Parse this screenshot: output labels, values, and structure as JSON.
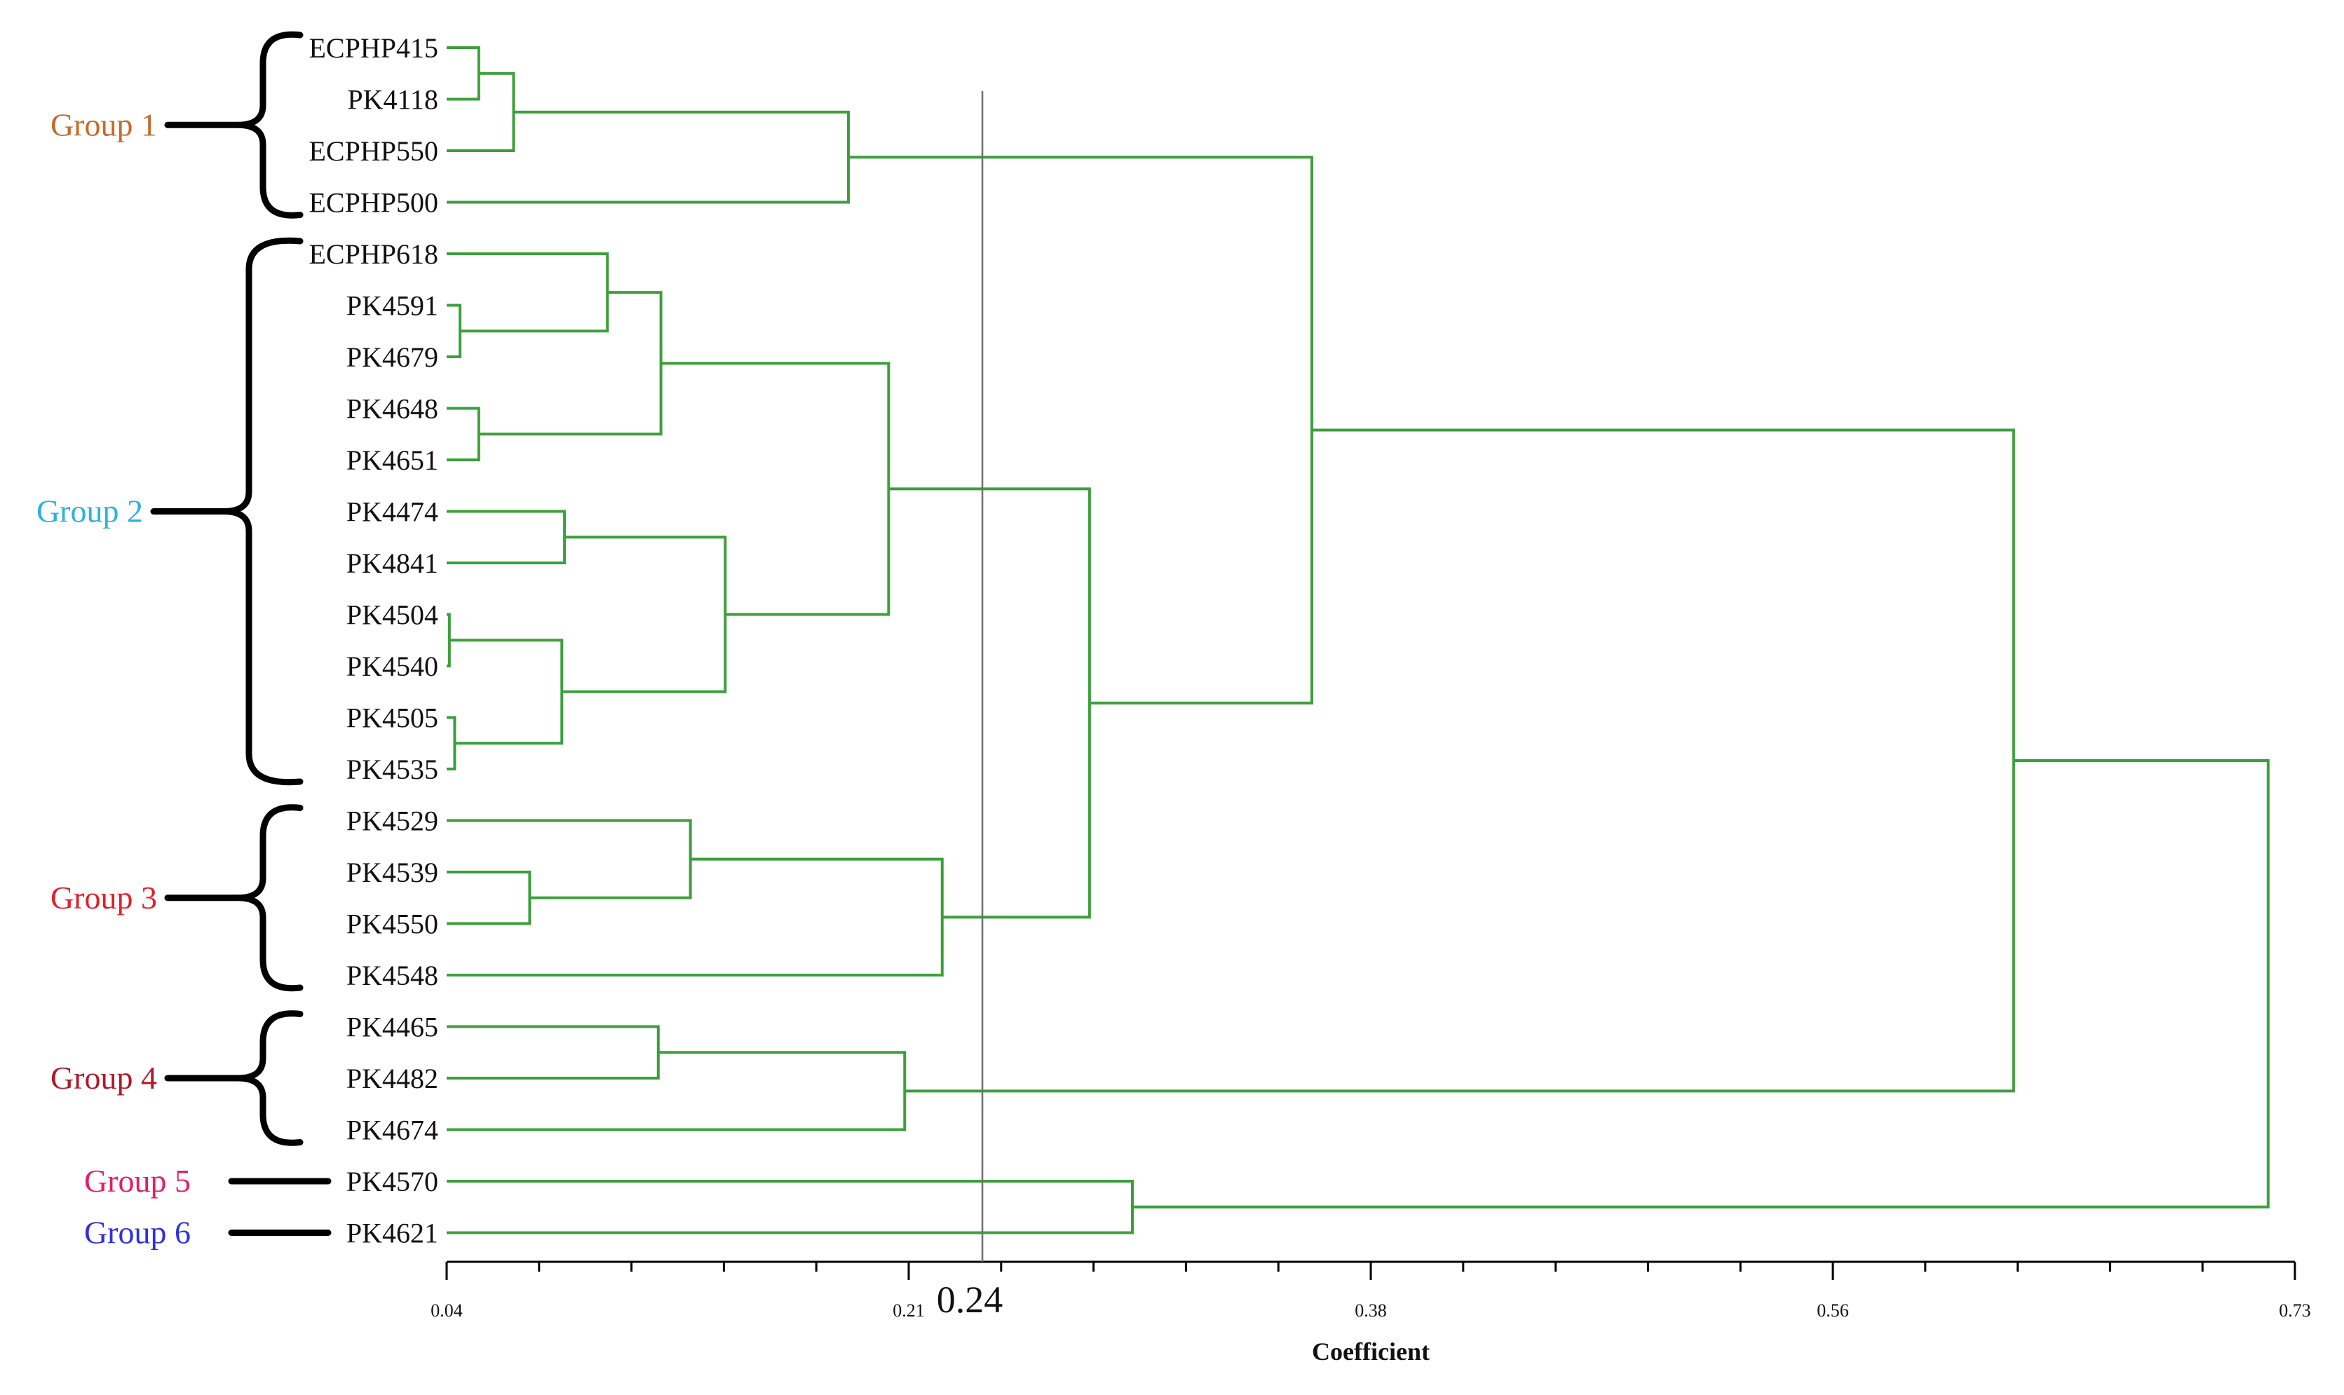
{
  "chart_data": {
    "type": "dendrogram",
    "method": "hierarchical clustering",
    "xlabel": "Coefficient",
    "xlim": [
      0.04,
      0.73
    ],
    "xticks": [
      "0.04",
      "0.21",
      "0.38",
      "0.56",
      "0.73"
    ],
    "cut_line": {
      "value": 0.24,
      "label": "0.24"
    },
    "branch_color": "#3c9f3c",
    "leaves": [
      "ECPHP415",
      "PK4118",
      "ECPHP550",
      "ECPHP500",
      "ECPHP618",
      "PK4591",
      "PK4679",
      "PK4648",
      "PK4651",
      "PK4474",
      "PK4841",
      "PK4504",
      "PK4540",
      "PK4505",
      "PK4535",
      "PK4529",
      "PK4539",
      "PK4550",
      "PK4548",
      "PK4465",
      "PK4482",
      "PK4674",
      "PK4570",
      "PK4621"
    ],
    "merges": [
      {
        "id": "m1",
        "children": [
          "ECPHP415",
          "PK4118"
        ],
        "height": 0.052
      },
      {
        "id": "m2",
        "children": [
          "m1",
          "ECPHP550"
        ],
        "height": 0.065
      },
      {
        "id": "m3",
        "children": [
          "m2",
          "ECPHP500"
        ],
        "height": 0.19
      },
      {
        "id": "m4",
        "children": [
          "PK4591",
          "PK4679"
        ],
        "height": 0.045
      },
      {
        "id": "m5",
        "children": [
          "ECPHP618",
          "m4"
        ],
        "height": 0.1
      },
      {
        "id": "m6",
        "children": [
          "PK4648",
          "PK4651"
        ],
        "height": 0.052
      },
      {
        "id": "m7",
        "children": [
          "m5",
          "m6"
        ],
        "height": 0.12
      },
      {
        "id": "m8",
        "children": [
          "PK4474",
          "PK4841"
        ],
        "height": 0.084
      },
      {
        "id": "m9",
        "children": [
          "PK4504",
          "PK4540"
        ],
        "height": 0.041
      },
      {
        "id": "m10",
        "children": [
          "PK4505",
          "PK4535"
        ],
        "height": 0.043
      },
      {
        "id": "m11",
        "children": [
          "m9",
          "m10"
        ],
        "height": 0.083
      },
      {
        "id": "m12",
        "children": [
          "m8",
          "m11"
        ],
        "height": 0.144
      },
      {
        "id": "m13",
        "children": [
          "m7",
          "m12"
        ],
        "height": 0.205
      },
      {
        "id": "m14",
        "children": [
          "PK4539",
          "PK4550"
        ],
        "height": 0.071
      },
      {
        "id": "m15",
        "children": [
          "PK4529",
          "m14"
        ],
        "height": 0.131
      },
      {
        "id": "m16",
        "children": [
          "m15",
          "PK4548"
        ],
        "height": 0.225
      },
      {
        "id": "m17",
        "children": [
          "m13",
          "m16"
        ],
        "height": 0.28
      },
      {
        "id": "m18",
        "children": [
          "m3",
          "m17"
        ],
        "height": 0.363
      },
      {
        "id": "m19",
        "children": [
          "PK4465",
          "PK4482"
        ],
        "height": 0.119
      },
      {
        "id": "m20",
        "children": [
          "m19",
          "PK4674"
        ],
        "height": 0.211
      },
      {
        "id": "m21",
        "children": [
          "m18",
          "m20"
        ],
        "height": 0.625
      },
      {
        "id": "m22",
        "children": [
          "PK4570",
          "PK4621"
        ],
        "height": 0.296
      },
      {
        "id": "m23",
        "children": [
          "m21",
          "m22"
        ],
        "height": 0.72
      }
    ],
    "groups": [
      {
        "label": "Group 1",
        "color": "#c46a2d",
        "first": "ECPHP415",
        "last": "ECPHP500",
        "style": "brace"
      },
      {
        "label": "Group 2",
        "color": "#2eb0e0",
        "first": "ECPHP618",
        "last": "PK4535",
        "style": "brace"
      },
      {
        "label": "Group 3",
        "color": "#e0202a",
        "first": "PK4529",
        "last": "PK4548",
        "style": "brace"
      },
      {
        "label": "Group 4",
        "color": "#b0182a",
        "first": "PK4465",
        "last": "PK4674",
        "style": "brace"
      },
      {
        "label": "Group 5",
        "color": "#e0206a",
        "first": "PK4570",
        "last": "PK4570",
        "style": "bar"
      },
      {
        "label": "Group 6",
        "color": "#3030e0",
        "first": "PK4621",
        "last": "PK4621",
        "style": "bar"
      }
    ]
  }
}
